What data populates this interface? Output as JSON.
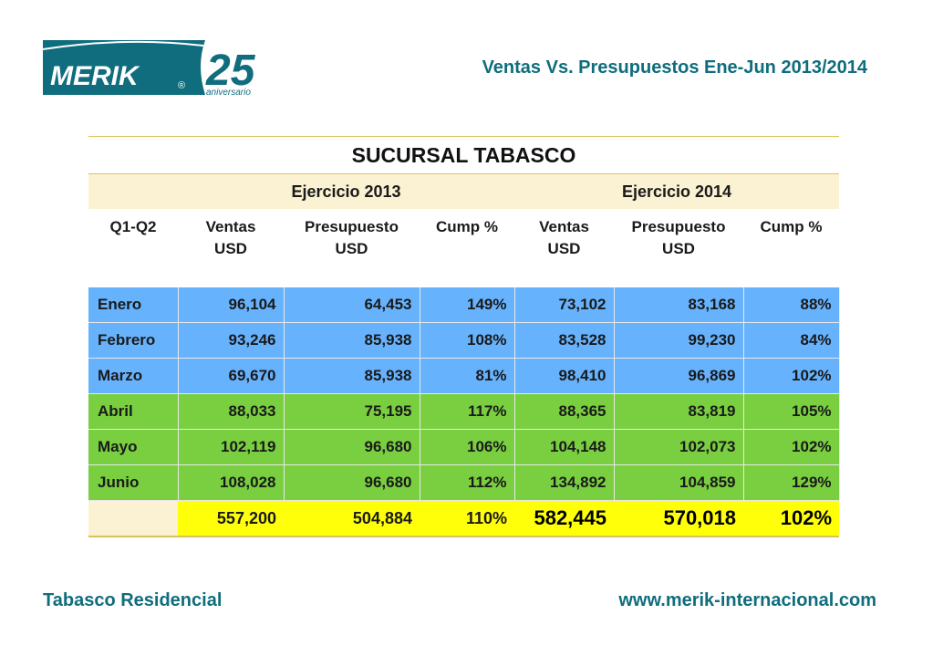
{
  "brand": {
    "logo_text": "MERIK",
    "registered": "®",
    "anniversary_number": "25",
    "anniversary_word": "aniversario",
    "primary_color": "#0f6d7d"
  },
  "title": "Ventas Vs. Presupuestos Ene-Jun 2013/2014",
  "table": {
    "branch": "SUCURSAL TABASCO",
    "year1": "Ejercicio 2013",
    "year2": "Ejercicio 2014",
    "period_label": "Q1-Q2",
    "col_sales_line1": "Ventas",
    "col_sales_line2": "USD",
    "col_budget_line1": "Presupuesto",
    "col_budget_line2": "USD",
    "col_pct": "Cump %",
    "rows": [
      {
        "month": "Enero",
        "s13": "96,104",
        "b13": "64,453",
        "p13": "149%",
        "s14": "73,102",
        "b14": "83,168",
        "p14": "88%"
      },
      {
        "month": "Febrero",
        "s13": "93,246",
        "b13": "85,938",
        "p13": "108%",
        "s14": "83,528",
        "b14": "99,230",
        "p14": "84%"
      },
      {
        "month": "Marzo",
        "s13": "69,670",
        "b13": "85,938",
        "p13": "81%",
        "s14": "98,410",
        "b14": "96,869",
        "p14": "102%"
      },
      {
        "month": "Abril",
        "s13": "88,033",
        "b13": "75,195",
        "p13": "117%",
        "s14": "88,365",
        "b14": "83,819",
        "p14": "105%"
      },
      {
        "month": "Mayo",
        "s13": "102,119",
        "b13": "96,680",
        "p13": "106%",
        "s14": "104,148",
        "b14": "102,073",
        "p14": "102%"
      },
      {
        "month": "Junio",
        "s13": "108,028",
        "b13": "96,680",
        "p13": "112%",
        "s14": "134,892",
        "b14": "104,859",
        "p14": "129%"
      }
    ],
    "totals": {
      "s13": "557,200",
      "b13": "504,884",
      "p13": "110%",
      "s14": "582,445",
      "b14": "570,018",
      "p14": "102%"
    },
    "colors": {
      "q1_rows": "#67b2fd",
      "q2_rows": "#79cf3f",
      "totals": "#ffff0a",
      "header_band": "#faf2d2"
    }
  },
  "footer": {
    "left": "Tabasco Residencial",
    "right": "www.merik-internacional.com"
  }
}
